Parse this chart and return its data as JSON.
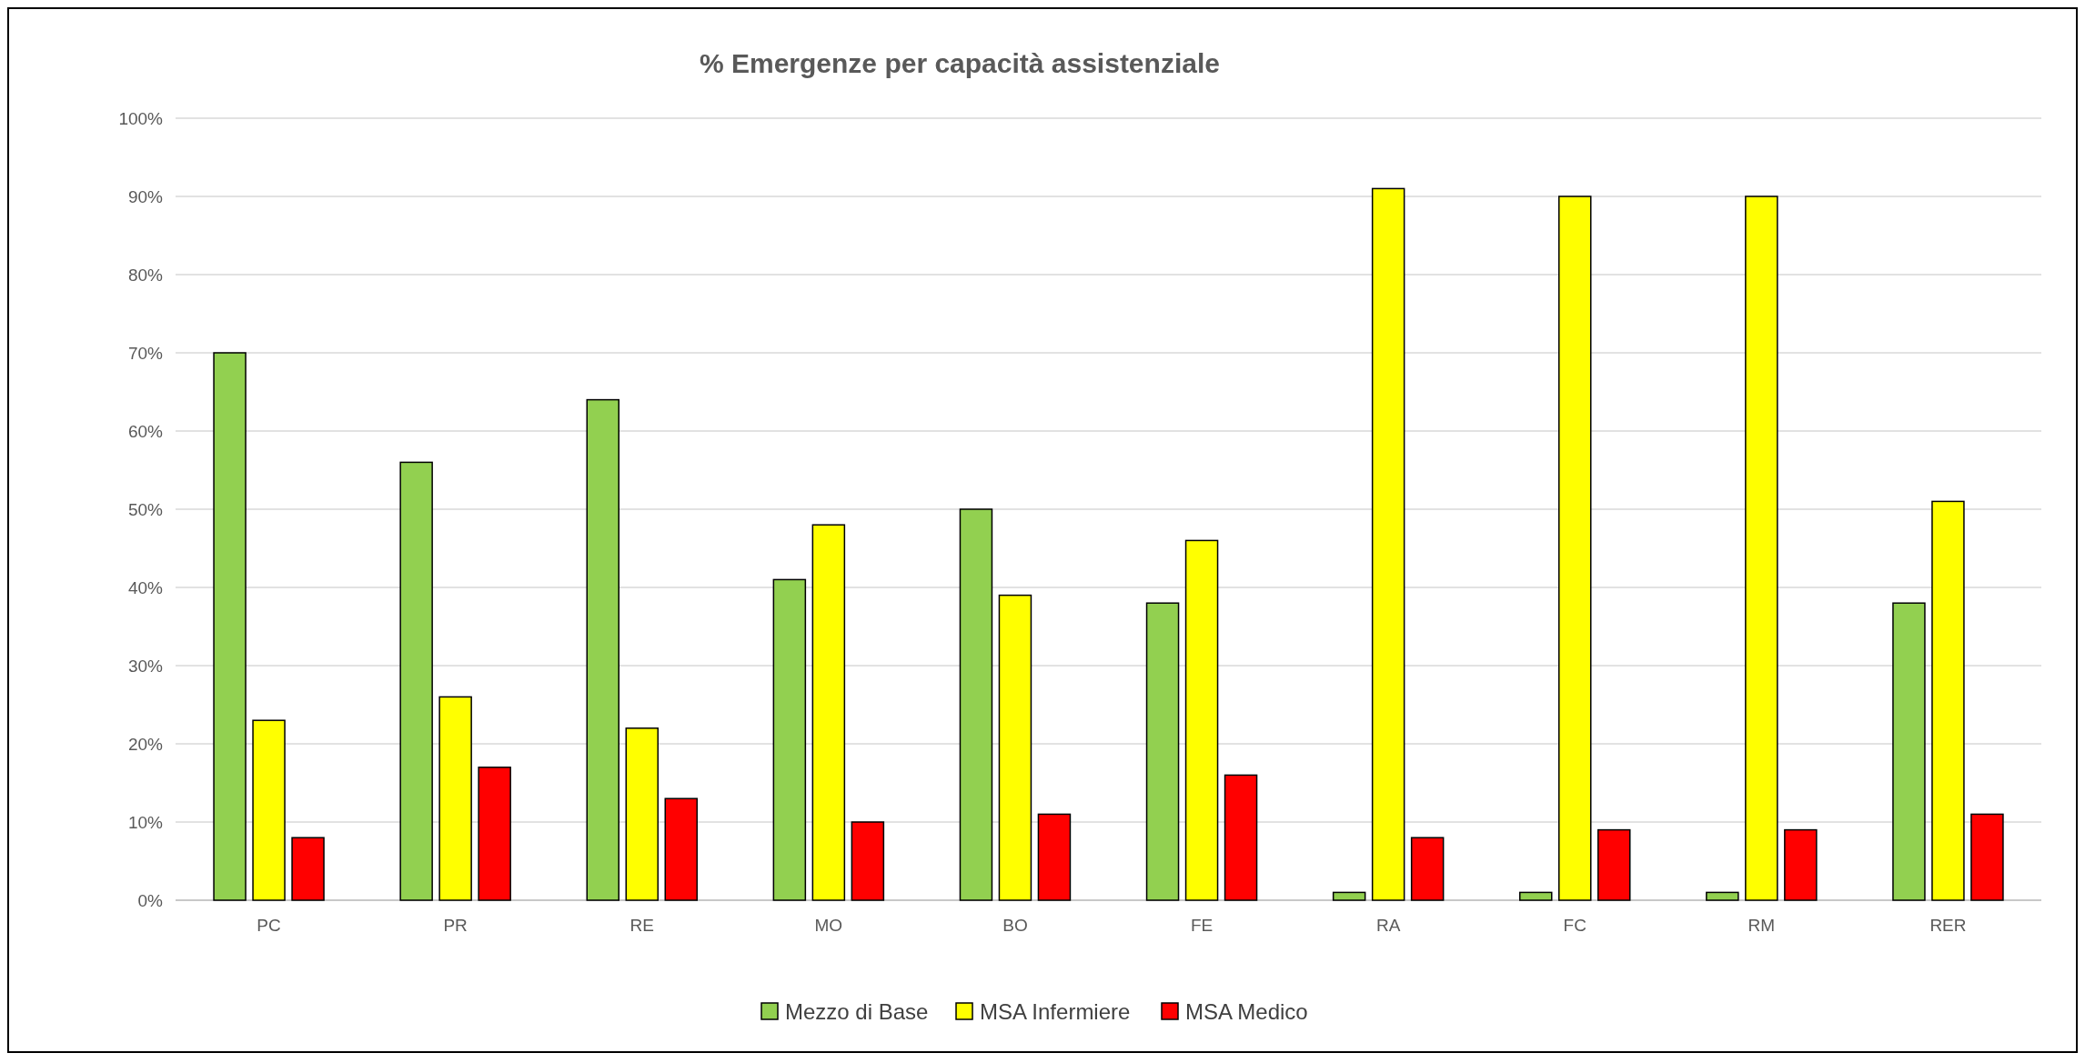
{
  "chart_data": {
    "type": "bar",
    "title": "% Emergenze per capacità assistenziale",
    "categories": [
      "PC",
      "PR",
      "RE",
      "MO",
      "BO",
      "FE",
      "RA",
      "FC",
      "RM",
      "RER"
    ],
    "series": [
      {
        "name": "Mezzo di Base",
        "color": "#92d050",
        "values": [
          70,
          56,
          64,
          41,
          50,
          38,
          1,
          1,
          1,
          38
        ]
      },
      {
        "name": "MSA Infermiere",
        "color": "#ffff00",
        "values": [
          23,
          26,
          22,
          48,
          39,
          46,
          91,
          90,
          90,
          51
        ]
      },
      {
        "name": "MSA Medico",
        "color": "#ff0000",
        "values": [
          8,
          17,
          13,
          10,
          11,
          16,
          8,
          9,
          9,
          11
        ]
      }
    ],
    "ylim": [
      0,
      100
    ],
    "yticks": [
      {
        "value": 0,
        "label": "0%"
      },
      {
        "value": 10,
        "label": "10%"
      },
      {
        "value": 20,
        "label": "20%"
      },
      {
        "value": 30,
        "label": "30%"
      },
      {
        "value": 40,
        "label": "40%"
      },
      {
        "value": 50,
        "label": "50%"
      },
      {
        "value": 60,
        "label": "60%"
      },
      {
        "value": 70,
        "label": "70%"
      },
      {
        "value": 80,
        "label": "80%"
      },
      {
        "value": 90,
        "label": "90%"
      },
      {
        "value": 100,
        "label": "100%"
      }
    ],
    "grid": "y",
    "legend": "bottom"
  }
}
